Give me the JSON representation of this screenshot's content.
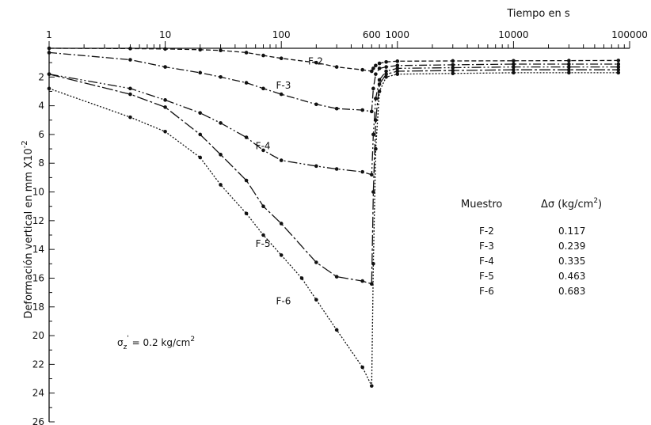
{
  "chart_data": {
    "type": "line",
    "title": "",
    "xlabel": "Tiempo en s",
    "ylabel": "Deformación vertical en mm X10",
    "ylabel_exponent": "-2",
    "x_scale": "log",
    "xlim": [
      1,
      100000
    ],
    "ylim": [
      0,
      26
    ],
    "y_inverted": true,
    "x_tick_labels": [
      {
        "value": 1,
        "label": "1"
      },
      {
        "value": 10,
        "label": "10"
      },
      {
        "value": 100,
        "label": "100"
      },
      {
        "value": 600,
        "label": "600"
      },
      {
        "value": 1000,
        "label": "1000"
      },
      {
        "value": 10000,
        "label": "10000"
      },
      {
        "value": 100000,
        "label": "100000"
      }
    ],
    "y_ticks": [
      2,
      4,
      6,
      8,
      10,
      12,
      14,
      16,
      18,
      20,
      22,
      24,
      26
    ],
    "series": [
      {
        "name": "F-2",
        "dash": "6,3",
        "label_at": [
          170,
          0.9
        ],
        "x": [
          1,
          5,
          10,
          20,
          30,
          50,
          70,
          100,
          200,
          300,
          500,
          600,
          620,
          650,
          700,
          800,
          1000,
          3000,
          10000,
          30000,
          80000
        ],
        "y": [
          0.0,
          0.02,
          0.05,
          0.1,
          0.15,
          0.3,
          0.5,
          0.7,
          1.0,
          1.3,
          1.5,
          1.6,
          1.4,
          1.2,
          1.05,
          0.95,
          0.9,
          0.88,
          0.87,
          0.86,
          0.85
        ]
      },
      {
        "name": "F-3",
        "dash": "10,3,2,3",
        "label_at": [
          90,
          2.6
        ],
        "x": [
          1,
          5,
          10,
          20,
          30,
          50,
          70,
          100,
          200,
          300,
          500,
          600,
          620,
          650,
          700,
          800,
          1000,
          3000,
          10000,
          30000,
          80000
        ],
        "y": [
          0.3,
          0.8,
          1.3,
          1.7,
          2.0,
          2.4,
          2.8,
          3.2,
          3.9,
          4.2,
          4.3,
          4.4,
          2.8,
          1.8,
          1.4,
          1.3,
          1.2,
          1.15,
          1.1,
          1.1,
          1.1
        ]
      },
      {
        "name": "F-4",
        "dash": "12,3,2,3,2,3",
        "label_at": [
          60,
          6.8
        ],
        "x": [
          1,
          5,
          10,
          20,
          30,
          50,
          70,
          100,
          200,
          300,
          500,
          600,
          620,
          650,
          700,
          800,
          1000,
          3000,
          10000,
          30000,
          80000
        ],
        "y": [
          1.8,
          2.8,
          3.6,
          4.5,
          5.2,
          6.2,
          7.1,
          7.8,
          8.2,
          8.4,
          8.6,
          8.8,
          6.0,
          3.5,
          2.2,
          1.6,
          1.4,
          1.35,
          1.3,
          1.3,
          1.3
        ]
      },
      {
        "name": "F-5",
        "dash": "14,3,3,3",
        "label_at": [
          60,
          13.6
        ],
        "x": [
          1,
          5,
          10,
          20,
          30,
          50,
          70,
          100,
          200,
          300,
          500,
          600,
          620,
          650,
          700,
          800,
          1000,
          3000,
          10000,
          30000,
          80000
        ],
        "y": [
          1.8,
          3.2,
          4.1,
          6.0,
          7.4,
          9.2,
          11.0,
          12.2,
          14.9,
          15.9,
          16.2,
          16.4,
          10.0,
          5.0,
          2.5,
          1.8,
          1.6,
          1.55,
          1.5,
          1.5,
          1.5
        ]
      },
      {
        "name": "F-6",
        "dash": "2,2",
        "label_at": [
          90,
          17.6
        ],
        "x": [
          1,
          5,
          10,
          20,
          30,
          50,
          70,
          100,
          150,
          200,
          300,
          500,
          600,
          620,
          650,
          700,
          800,
          1000,
          3000,
          10000,
          30000,
          80000
        ],
        "y": [
          2.8,
          4.8,
          5.8,
          7.6,
          9.5,
          11.5,
          13.0,
          14.4,
          16.0,
          17.5,
          19.6,
          22.2,
          23.5,
          15.0,
          7.0,
          3.0,
          2.0,
          1.8,
          1.75,
          1.7,
          1.7,
          1.7
        ]
      }
    ],
    "annotation": {
      "sigma": "σ",
      "sub": "z",
      "sup": "'",
      "text": " = 0.2 kg/cm",
      "sup2": "2",
      "x": 4,
      "y": 20.5
    },
    "legend": {
      "placement": "right",
      "header_muestra": "Muestro",
      "header_delta": "Δσ (kg/cm",
      "header_delta_sup": "2",
      "header_delta_end": ")",
      "rows": [
        {
          "name": "F-2",
          "value": "0.117"
        },
        {
          "name": "F-3",
          "value": "0.239"
        },
        {
          "name": "F-4",
          "value": "0.335"
        },
        {
          "name": "F-5",
          "value": "0.463"
        },
        {
          "name": "F-6",
          "value": "0.683"
        }
      ]
    }
  }
}
